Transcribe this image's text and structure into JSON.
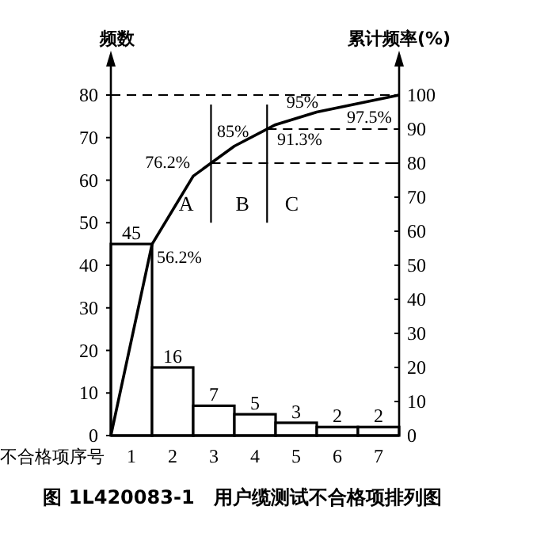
{
  "chart_data": {
    "type": "bar",
    "title": "图 1L420083-1　用户缆测试不合格项排列图",
    "ylabel": "频数",
    "y2label": "累计频率(%)",
    "xlabel": "不合格项序号",
    "xlim": [
      0,
      7
    ],
    "xticks": [
      {
        "value": 0.5,
        "label": "1"
      },
      {
        "value": 1.5,
        "label": "2"
      },
      {
        "value": 2.5,
        "label": "3"
      },
      {
        "value": 3.5,
        "label": "4"
      },
      {
        "value": 4.5,
        "label": "5"
      },
      {
        "value": 5.5,
        "label": "6"
      },
      {
        "value": 6.5,
        "label": "7"
      }
    ],
    "series": [
      {
        "color": "#ffffff",
        "x": [
          0.5,
          1.5,
          2.5,
          3.5,
          4.5,
          5.5,
          6.5
        ],
        "values": [
          45,
          16,
          7,
          5,
          3,
          2,
          2
        ],
        "value_labels": [
          "45",
          "16",
          "7",
          "5",
          "3",
          "2",
          "2"
        ]
      },
      {
        "type": "line",
        "axis": "y2",
        "color": "#000000",
        "x": [
          0,
          1,
          2,
          3,
          4,
          5,
          6,
          7
        ],
        "values": [
          0,
          56.2,
          76.2,
          85,
          91.3,
          95,
          97.5,
          100
        ],
        "value_labels": [
          null,
          "56.2%",
          "76.2%",
          "85%",
          "91.3%",
          "95%",
          "97.5%",
          null
        ]
      }
    ],
    "ylim": [
      0,
      80
    ],
    "yticks": [
      0,
      10,
      20,
      30,
      40,
      50,
      60,
      70,
      80
    ],
    "y2lim": [
      0,
      100
    ],
    "y2ticks": [
      0,
      10,
      20,
      30,
      40,
      50,
      60,
      70,
      80,
      90,
      100
    ],
    "ref_lines": [
      {
        "axis": "y",
        "value": 80,
        "line_style": "dashed"
      },
      {
        "axis": "y2",
        "value": 80,
        "line_style": "dashed"
      },
      {
        "axis": "y2",
        "value": 90,
        "line_style": "dashed"
      }
    ],
    "annotations": [
      "A",
      "B",
      "C"
    ],
    "grid": false
  }
}
